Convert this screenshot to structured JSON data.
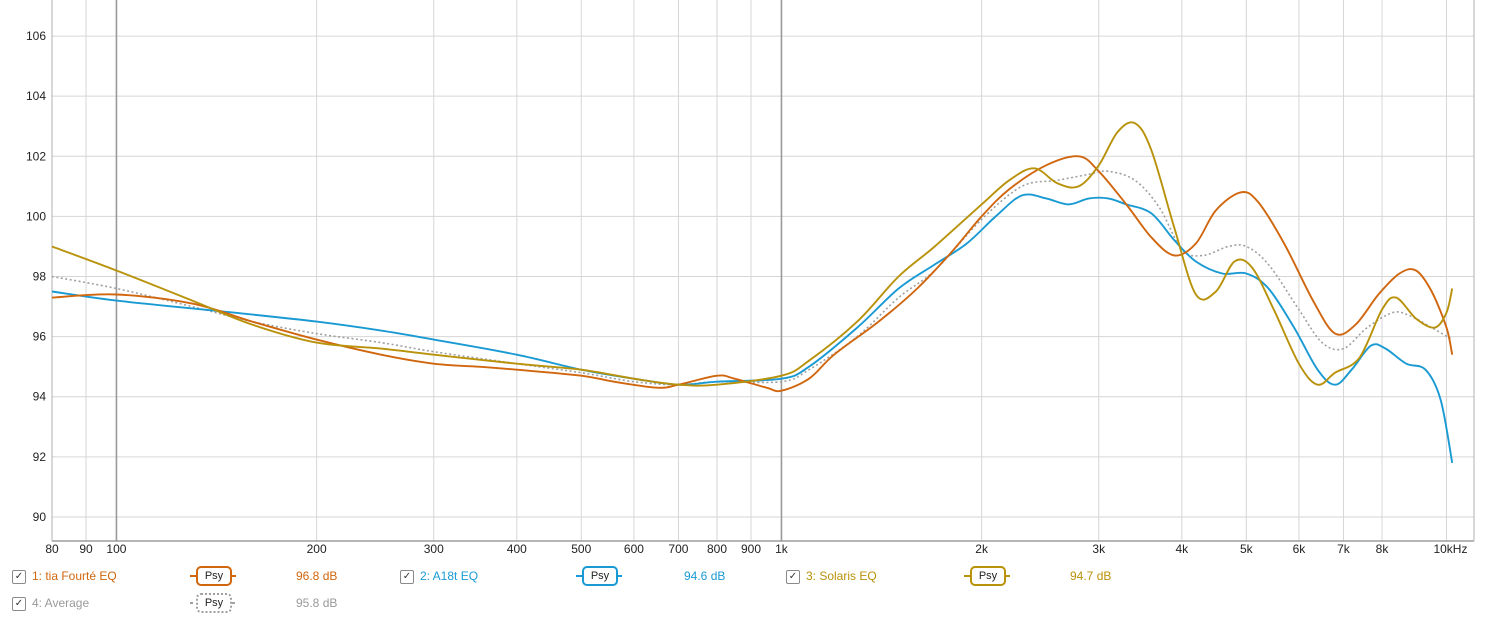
{
  "chart_data": {
    "type": "line",
    "title": "",
    "xlabel": "",
    "ylabel": "",
    "x_scale": "log",
    "xlim": [
      80,
      11000
    ],
    "ylim": [
      89.2,
      107.2
    ],
    "grid": true,
    "y_ticks": [
      90,
      92,
      94,
      96,
      98,
      100,
      102,
      104,
      106
    ],
    "x_ticks": [
      {
        "v": 80,
        "label": "80"
      },
      {
        "v": 90,
        "label": "90"
      },
      {
        "v": 100,
        "label": "100"
      },
      {
        "v": 200,
        "label": "200"
      },
      {
        "v": 300,
        "label": "300"
      },
      {
        "v": 400,
        "label": "400"
      },
      {
        "v": 500,
        "label": "500"
      },
      {
        "v": 600,
        "label": "600"
      },
      {
        "v": 700,
        "label": "700"
      },
      {
        "v": 800,
        "label": "800"
      },
      {
        "v": 900,
        "label": "900"
      },
      {
        "v": 1000,
        "label": "1k"
      },
      {
        "v": 2000,
        "label": "2k"
      },
      {
        "v": 3000,
        "label": "3k"
      },
      {
        "v": 4000,
        "label": "4k"
      },
      {
        "v": 5000,
        "label": "5k"
      },
      {
        "v": 6000,
        "label": "6k"
      },
      {
        "v": 7000,
        "label": "7k"
      },
      {
        "v": 8000,
        "label": "8k"
      },
      {
        "v": 10000,
        "label": "10kHz"
      }
    ],
    "series": [
      {
        "name": "1: tia Fourté EQ",
        "color": "#d0660e",
        "dashed": false,
        "points": [
          [
            80,
            97.3
          ],
          [
            100,
            97.4
          ],
          [
            130,
            97.1
          ],
          [
            160,
            96.5
          ],
          [
            200,
            95.9
          ],
          [
            250,
            95.4
          ],
          [
            300,
            95.1
          ],
          [
            350,
            95.0
          ],
          [
            400,
            94.9
          ],
          [
            500,
            94.7
          ],
          [
            560,
            94.5
          ],
          [
            650,
            94.3
          ],
          [
            700,
            94.4
          ],
          [
            800,
            94.7
          ],
          [
            850,
            94.6
          ],
          [
            950,
            94.3
          ],
          [
            1000,
            94.2
          ],
          [
            1100,
            94.6
          ],
          [
            1200,
            95.4
          ],
          [
            1400,
            96.5
          ],
          [
            1600,
            97.6
          ],
          [
            1800,
            98.8
          ],
          [
            2000,
            100.0
          ],
          [
            2200,
            100.9
          ],
          [
            2500,
            101.7
          ],
          [
            2800,
            102.0
          ],
          [
            3000,
            101.5
          ],
          [
            3300,
            100.4
          ],
          [
            3600,
            99.3
          ],
          [
            3900,
            98.7
          ],
          [
            4200,
            99.1
          ],
          [
            4500,
            100.2
          ],
          [
            4900,
            100.8
          ],
          [
            5200,
            100.5
          ],
          [
            5700,
            99.1
          ],
          [
            6300,
            97.2
          ],
          [
            6800,
            96.1
          ],
          [
            7300,
            96.4
          ],
          [
            7900,
            97.4
          ],
          [
            8500,
            98.1
          ],
          [
            9000,
            98.2
          ],
          [
            9500,
            97.5
          ],
          [
            10000,
            96.3
          ],
          [
            10200,
            95.4
          ]
        ]
      },
      {
        "name": "2: A18t EQ",
        "color": "#1a9ad3",
        "dashed": false,
        "points": [
          [
            80,
            97.5
          ],
          [
            100,
            97.2
          ],
          [
            150,
            96.8
          ],
          [
            200,
            96.5
          ],
          [
            250,
            96.2
          ],
          [
            300,
            95.9
          ],
          [
            400,
            95.4
          ],
          [
            500,
            94.9
          ],
          [
            600,
            94.6
          ],
          [
            700,
            94.4
          ],
          [
            800,
            94.5
          ],
          [
            1000,
            94.6
          ],
          [
            1100,
            95.0
          ],
          [
            1300,
            96.3
          ],
          [
            1500,
            97.6
          ],
          [
            1700,
            98.4
          ],
          [
            1900,
            99.1
          ],
          [
            2100,
            100.0
          ],
          [
            2300,
            100.7
          ],
          [
            2500,
            100.6
          ],
          [
            2700,
            100.4
          ],
          [
            2900,
            100.6
          ],
          [
            3100,
            100.6
          ],
          [
            3300,
            100.4
          ],
          [
            3600,
            100.1
          ],
          [
            3900,
            99.2
          ],
          [
            4200,
            98.5
          ],
          [
            4600,
            98.1
          ],
          [
            5000,
            98.1
          ],
          [
            5400,
            97.6
          ],
          [
            5900,
            96.3
          ],
          [
            6400,
            94.9
          ],
          [
            6800,
            94.4
          ],
          [
            7200,
            94.9
          ],
          [
            7700,
            95.7
          ],
          [
            8100,
            95.6
          ],
          [
            8700,
            95.1
          ],
          [
            9300,
            94.9
          ],
          [
            9800,
            93.9
          ],
          [
            10200,
            91.8
          ]
        ]
      },
      {
        "name": "3: Solaris EQ",
        "color": "#b8920a",
        "dashed": false,
        "points": [
          [
            80,
            99.0
          ],
          [
            100,
            98.2
          ],
          [
            130,
            97.2
          ],
          [
            160,
            96.4
          ],
          [
            200,
            95.8
          ],
          [
            250,
            95.6
          ],
          [
            300,
            95.4
          ],
          [
            400,
            95.1
          ],
          [
            500,
            94.9
          ],
          [
            600,
            94.6
          ],
          [
            700,
            94.4
          ],
          [
            800,
            94.4
          ],
          [
            1000,
            94.7
          ],
          [
            1100,
            95.2
          ],
          [
            1300,
            96.5
          ],
          [
            1500,
            98.0
          ],
          [
            1700,
            99.0
          ],
          [
            2000,
            100.4
          ],
          [
            2200,
            101.2
          ],
          [
            2400,
            101.6
          ],
          [
            2600,
            101.1
          ],
          [
            2800,
            101.0
          ],
          [
            3000,
            101.7
          ],
          [
            3200,
            102.8
          ],
          [
            3400,
            103.1
          ],
          [
            3600,
            102.2
          ],
          [
            3900,
            99.6
          ],
          [
            4200,
            97.4
          ],
          [
            4500,
            97.5
          ],
          [
            4800,
            98.5
          ],
          [
            5100,
            98.3
          ],
          [
            5500,
            96.9
          ],
          [
            6000,
            95.1
          ],
          [
            6400,
            94.4
          ],
          [
            6800,
            94.8
          ],
          [
            7400,
            95.3
          ],
          [
            8000,
            96.9
          ],
          [
            8400,
            97.3
          ],
          [
            9000,
            96.6
          ],
          [
            9600,
            96.3
          ],
          [
            10000,
            96.8
          ],
          [
            10200,
            97.6
          ]
        ]
      },
      {
        "name": "4: Average",
        "color": "#a0a0a0",
        "dashed": true,
        "points": [
          [
            80,
            98.0
          ],
          [
            100,
            97.6
          ],
          [
            130,
            97.0
          ],
          [
            160,
            96.5
          ],
          [
            200,
            96.1
          ],
          [
            250,
            95.8
          ],
          [
            300,
            95.5
          ],
          [
            400,
            95.1
          ],
          [
            500,
            94.8
          ],
          [
            600,
            94.5
          ],
          [
            700,
            94.4
          ],
          [
            800,
            94.5
          ],
          [
            1000,
            94.5
          ],
          [
            1100,
            94.9
          ],
          [
            1300,
            96.0
          ],
          [
            1500,
            97.3
          ],
          [
            1700,
            98.2
          ],
          [
            2000,
            99.9
          ],
          [
            2300,
            101.0
          ],
          [
            2600,
            101.2
          ],
          [
            2900,
            101.4
          ],
          [
            3100,
            101.5
          ],
          [
            3400,
            101.2
          ],
          [
            3700,
            100.3
          ],
          [
            4000,
            98.9
          ],
          [
            4300,
            98.7
          ],
          [
            4700,
            99.0
          ],
          [
            5000,
            99.0
          ],
          [
            5400,
            98.4
          ],
          [
            6000,
            96.9
          ],
          [
            6500,
            95.8
          ],
          [
            7000,
            95.6
          ],
          [
            7600,
            96.3
          ],
          [
            8300,
            96.8
          ],
          [
            8800,
            96.7
          ],
          [
            9500,
            96.3
          ],
          [
            10200,
            95.9
          ]
        ]
      }
    ]
  },
  "legend": [
    {
      "label": "1: tia Fourté EQ",
      "psy": "Psy",
      "value": "96.8 dB",
      "color": "#d0660e",
      "checked": true
    },
    {
      "label": "2: A18t EQ",
      "psy": "Psy",
      "value": "94.6 dB",
      "color": "#1a9ad3",
      "checked": true
    },
    {
      "label": "3: Solaris EQ",
      "psy": "Psy",
      "value": "94.7 dB",
      "color": "#b8920a",
      "checked": true
    },
    {
      "label": "4: Average",
      "psy": "Psy",
      "value": "95.8 dB",
      "color": "#a0a0a0",
      "checked": true
    }
  ]
}
